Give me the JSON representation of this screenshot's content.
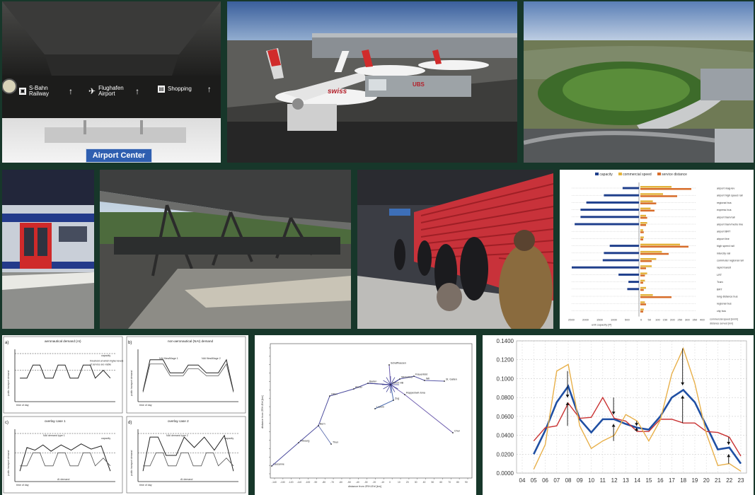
{
  "terminal_sign": {
    "items": [
      {
        "label": "S-Bahn Railway",
        "icon": "train-icon"
      },
      {
        "label": "Flughafen Airport",
        "icon": "plane-icon"
      },
      {
        "label": "Shopping",
        "icon": "shopping-icon"
      }
    ],
    "center_sign": "Airport Center"
  },
  "apron": {
    "aircraft_text": "swiss",
    "bridge_text": "UBS"
  },
  "mode_chart": {
    "legend": [
      "capacity",
      "commercial speed",
      "service distance"
    ],
    "modes": [
      "airport mag-lev",
      "airport high speed rail",
      "regional bus",
      "express bus",
      "airport tram/rail",
      "airport tram/metro line",
      "airport BRT",
      "airport line",
      "high speed rail",
      "intercity rail",
      "commuter regional rail",
      "rapid transit",
      "LRT",
      "Tram",
      "BRT",
      "long distance bus",
      "regional bus",
      "city bus"
    ],
    "capacity": [
      0.28,
      0.6,
      0.9,
      1.0,
      1.0,
      1.1,
      0,
      0,
      0.5,
      0.6,
      0.62,
      1.15,
      0.35,
      0.18,
      0.2,
      0,
      0,
      0
    ],
    "speed": [
      0.55,
      0.4,
      0.22,
      0.18,
      0.1,
      0.12,
      0.05,
      0.06,
      0.7,
      0.38,
      0.28,
      0.2,
      0.12,
      0.08,
      0.1,
      0.22,
      0.08,
      0.06
    ],
    "distance": [
      0.9,
      0.65,
      0.28,
      0.25,
      0.12,
      0.1,
      0.06,
      0.05,
      0.85,
      0.5,
      0.2,
      0.1,
      0.08,
      0.05,
      0.06,
      0.55,
      0.1,
      0.05
    ],
    "xlabel_left": "unit capacity [P]",
    "xlabel_right": "commercial speed [km/h]",
    "xlabel_right2": "distance served [km]",
    "left_ticks": [
      "2500",
      "2000",
      "1500",
      "1000",
      "500"
    ],
    "right_ticks": [
      "0",
      "50",
      "100",
      "150",
      "200",
      "250",
      "300",
      "350",
      "400"
    ]
  },
  "demand_panels": [
    {
      "letter": "a)",
      "title": "aeronautical demand (AI)",
      "capacity": "capacity",
      "note": "threshold at which higher levels of service are viable",
      "ylabel": "public transport demand",
      "xlabel": "time of day"
    },
    {
      "letter": "b)",
      "title": "non-aeronautical (NAI) demand",
      "label1": "NAI flies/tillage 1",
      "label2": "NAI flies/tillage 2",
      "ylabel": "public transport demand",
      "xlabel": "time of day"
    },
    {
      "letter": "c)",
      "title": "overlay case 1",
      "capacity": "capacity",
      "nai": "NAI demand type 1",
      "ai": "AI demand",
      "ylabel": "public transport demand",
      "xlabel": "time of day"
    },
    {
      "letter": "d)",
      "title": "overlay case 2",
      "capacity": "capacity",
      "nai": "NAI demand type 2",
      "ai": "AI demand",
      "ylabel": "public transport demand",
      "xlabel": "time of day"
    }
  ],
  "network_chart": {
    "xlabel": "distance from ZRH-Ehf [km]",
    "ylabel": "distance from ZRH-Ehf [km]",
    "xticks": [
      "-140",
      "-130",
      "-120",
      "-110",
      "-100",
      "-90",
      "-80",
      "-70",
      "-60",
      "-50",
      "-40",
      "-30",
      "-20",
      "-10",
      "0",
      "10",
      "20",
      "30",
      "40",
      "50",
      "60",
      "70",
      "80",
      "90"
    ],
    "stations": [
      "Schaffhausen",
      "Frauenfeld",
      "Winterthur",
      "Wil",
      "St. Gallen",
      "Baden",
      "Zürich HB",
      "Aarau",
      "Rapperswil-Jona",
      "Zug",
      "Luzern",
      "Olten",
      "Bern",
      "Fribourg",
      "Lausanne",
      "Thun",
      "Chur"
    ]
  },
  "line_chart": {
    "type": "line",
    "x": [
      "04",
      "05",
      "06",
      "07",
      "08",
      "09",
      "10",
      "11",
      "12",
      "13",
      "14",
      "15",
      "16",
      "17",
      "18",
      "19",
      "20",
      "21",
      "22",
      "23"
    ],
    "ylim": [
      0,
      0.14
    ],
    "yticks": [
      "0.0000",
      "0.0200",
      "0.0400",
      "0.0600",
      "0.0800",
      "0.1000",
      "0.1200",
      "0.1400"
    ],
    "series": [
      {
        "color": "#1f4fa3",
        "values": [
          null,
          0.02,
          0.045,
          0.075,
          0.092,
          0.057,
          0.043,
          0.057,
          0.057,
          0.052,
          0.048,
          0.046,
          0.06,
          0.08,
          0.088,
          0.075,
          0.05,
          0.025,
          0.027,
          0.01
        ]
      },
      {
        "color": "#c93232",
        "values": [
          null,
          0.034,
          0.048,
          0.05,
          0.074,
          0.058,
          0.059,
          0.08,
          0.058,
          0.055,
          0.044,
          0.044,
          0.057,
          0.057,
          0.053,
          0.053,
          0.044,
          0.043,
          0.038,
          0.018
        ]
      },
      {
        "color": "#e8b04a",
        "values": [
          null,
          0.004,
          0.03,
          0.108,
          0.115,
          0.05,
          0.026,
          0.034,
          0.04,
          0.062,
          0.055,
          0.034,
          0.056,
          0.105,
          0.132,
          0.095,
          0.042,
          0.008,
          0.01,
          0.002
        ]
      }
    ]
  }
}
